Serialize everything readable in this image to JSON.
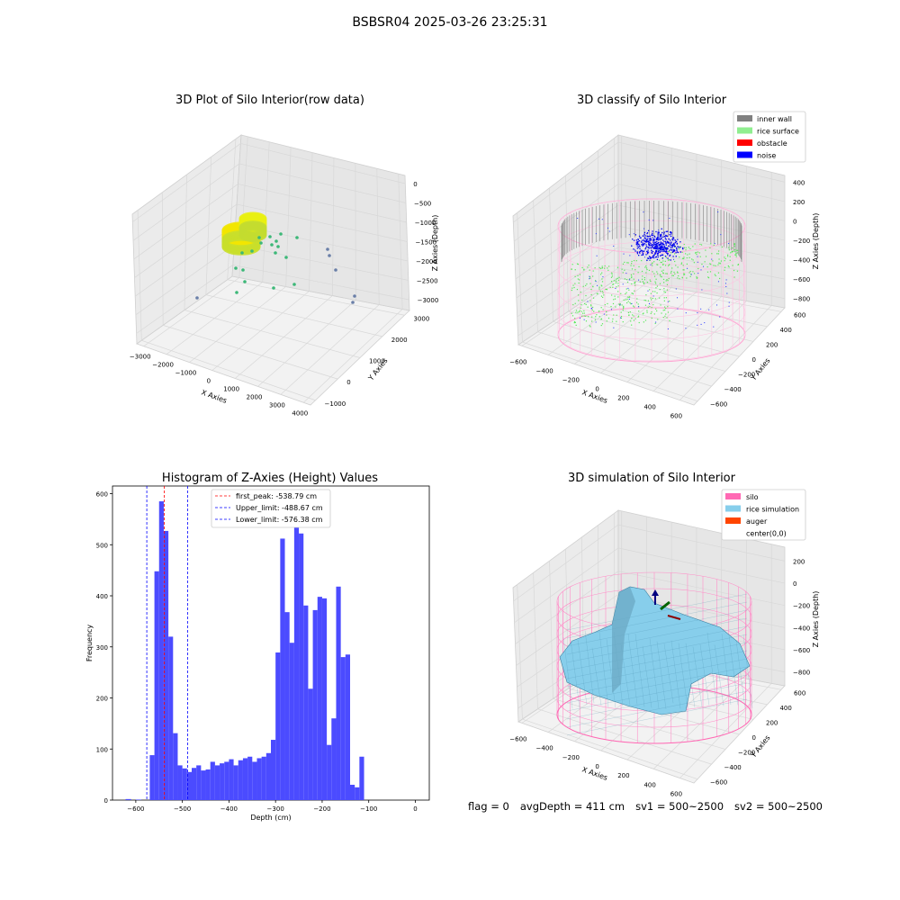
{
  "suptitle": "BSBSR04 2025-03-26 23:25:31",
  "chart_data": [
    {
      "type": "scatter3d",
      "title": "3D Plot of Silo Interior(row data)",
      "xlabel": "X Axies",
      "ylabel": "Y Axies",
      "zlabel": "Z Axies (Depth)",
      "x_ticks": [
        "−3000",
        "−2000",
        "−1000",
        "0",
        "1000",
        "2000",
        "3000",
        "4000"
      ],
      "y_ticks": [
        "−1000",
        "0",
        "1000",
        "2000",
        "3000"
      ],
      "z_ticks": [
        "0",
        "−500",
        "−1000",
        "−1500",
        "−2000",
        "−2500",
        "−3000"
      ],
      "xlim": [
        -3000,
        4000
      ],
      "ylim": [
        -1000,
        3000
      ],
      "zlim": [
        -3200,
        0
      ],
      "colors": {
        "points": "#d6e618",
        "outliers": "#3cb878",
        "far": "#6a7fa8"
      }
    },
    {
      "type": "scatter3d",
      "title": "3D classify of Silo Interior",
      "xlabel": "X Axies",
      "ylabel": "Y Axies",
      "zlabel": "Z Axies (Depth)",
      "x_ticks": [
        "−600",
        "−400",
        "−200",
        "0",
        "200",
        "400",
        "600"
      ],
      "y_ticks": [
        "−600",
        "−400",
        "−200",
        "0",
        "200",
        "400",
        "600"
      ],
      "z_ticks": [
        "400",
        "200",
        "0",
        "−200",
        "−400",
        "−600",
        "−800"
      ],
      "xlim": [
        -600,
        600
      ],
      "ylim": [
        -600,
        600
      ],
      "zlim": [
        -900,
        400
      ],
      "legend": [
        {
          "label": "inner wall",
          "color": "#808080"
        },
        {
          "label": "rice surface",
          "color": "#90ee90"
        },
        {
          "label": "obstacle",
          "color": "#ff0000"
        },
        {
          "label": "noise",
          "color": "#0000ff"
        }
      ],
      "legend_position": "top-right"
    },
    {
      "type": "bar",
      "title": "Histogram of Z-Axies (Height) Values",
      "xlabel": "Depth (cm)",
      "ylabel": "Frequency",
      "xlim": [
        -650,
        30
      ],
      "ylim": [
        0,
        615
      ],
      "x_ticks": [
        -600,
        -500,
        -400,
        -300,
        -200,
        -100,
        0
      ],
      "y_ticks": [
        0,
        100,
        200,
        300,
        400,
        500,
        600
      ],
      "bin_start": -570,
      "bin_width": 10,
      "values": [
        88,
        448,
        585,
        527,
        320,
        131,
        68,
        62,
        55,
        63,
        68,
        58,
        60,
        75,
        68,
        72,
        75,
        80,
        68,
        78,
        82,
        85,
        75,
        82,
        85,
        92,
        118,
        289,
        512,
        368,
        308,
        575,
        522,
        381,
        218,
        372,
        398,
        395,
        108,
        160,
        418,
        280,
        285,
        30,
        25,
        85
      ],
      "extra_bins": [
        {
          "x": -622,
          "value": 2
        },
        {
          "x": -600,
          "value": 1
        }
      ],
      "bar_color": "#4b4bff",
      "vlines": [
        {
          "x": -538.79,
          "color": "#ff0000",
          "label": "first_peak: -538.79 cm"
        },
        {
          "x": -488.67,
          "color": "#0000ff",
          "label": "Upper_limit: -488.67 cm"
        },
        {
          "x": -576.38,
          "color": "#0000ff",
          "label": "Lower_limit: -576.38 cm"
        }
      ],
      "legend_position": "top-center"
    },
    {
      "type": "surface3d",
      "title": "3D simulation of Silo Interior",
      "xlabel": "X Axies",
      "ylabel": "Y Axies",
      "zlabel": "Z Axies (Depth)",
      "x_ticks": [
        "−600",
        "−400",
        "−200",
        "0",
        "200",
        "400",
        "600"
      ],
      "y_ticks": [
        "−600",
        "−400",
        "−200",
        "0",
        "200",
        "400",
        "600"
      ],
      "z_ticks": [
        "200",
        "0",
        "−200",
        "−400",
        "−600",
        "−800"
      ],
      "legend": [
        {
          "label": "silo",
          "color": "#ff69b4"
        },
        {
          "label": "rice simulation",
          "color": "#87ceeb"
        },
        {
          "label": "auger",
          "color": "#ff4500"
        },
        {
          "label": "center(0,0)",
          "color": ""
        }
      ],
      "legend_position": "top-right"
    }
  ],
  "status": {
    "flag": "flag = 0",
    "avg": "avgDepth = 411 cm",
    "sv1": "sv1 = 500~2500",
    "sv2": "sv2 = 500~2500"
  }
}
